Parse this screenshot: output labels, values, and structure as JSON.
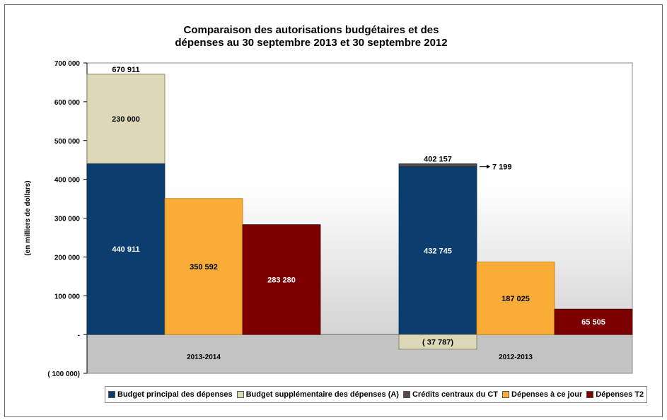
{
  "chart_data": {
    "type": "bar",
    "title": "Comparaison des autorisations budgétaires et des dépenses au 30 septembre 2013 et 30 septembre 2012",
    "title_lines": [
      "Comparaison des autorisations budgétaires et des",
      "dépenses au 30 septembre 2013 et 30 septembre 2012"
    ],
    "ylabel": "(en milliers de dollars)",
    "ylim": [
      -100000,
      700000
    ],
    "yticks": [
      700000,
      600000,
      500000,
      400000,
      300000,
      200000,
      100000,
      0,
      -100000
    ],
    "ytick_labels": [
      "700 000",
      "600 000",
      "500 000",
      "400 000",
      "300 000",
      "200 000",
      "100 000",
      "-",
      "( 100 000)"
    ],
    "categories": [
      "2013-2014",
      "2012-2013"
    ],
    "grid": false,
    "legend_position": "bottom",
    "series": [
      {
        "name": "Budget principal des dépenses",
        "values": [
          440911,
          432745
        ],
        "labels": [
          "440 911",
          "432 745"
        ],
        "color": "#0b3e6f"
      },
      {
        "name": "Budget supplémentaire des dépenses (A)",
        "values": [
          230000,
          -37787
        ],
        "labels": [
          "230 000",
          "( 37 787)"
        ],
        "color": "#ddd9b8"
      },
      {
        "name": "Crédits centraux du CT",
        "values": [
          0,
          7199
        ],
        "labels": [
          "",
          "7 199"
        ],
        "color": "#5a4a42"
      },
      {
        "name": "Dépenses à ce jour",
        "values": [
          350592,
          187025
        ],
        "labels": [
          "350 592",
          "187 025"
        ],
        "color": "#f9ad37"
      },
      {
        "name": "Dépenses T2",
        "values": [
          283280,
          65505
        ],
        "labels": [
          "283 280",
          "65 505"
        ],
        "color": "#7d0000"
      }
    ],
    "totals": [
      670911,
      402157
    ],
    "total_labels": [
      "670 911",
      "402 157"
    ]
  }
}
